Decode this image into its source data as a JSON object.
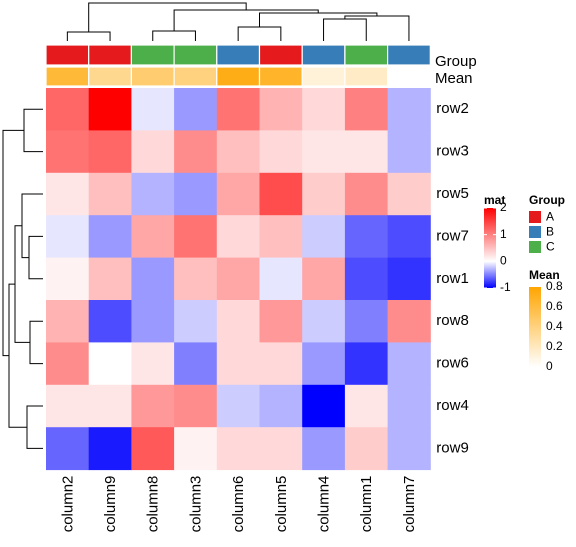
{
  "chart_data": {
    "type": "heatmap",
    "rows": [
      "row2",
      "row3",
      "row5",
      "row7",
      "row1",
      "row8",
      "row6",
      "row4",
      "row9"
    ],
    "columns": [
      "column2",
      "column9",
      "column8",
      "column3",
      "column6",
      "column5",
      "column4",
      "column1",
      "column7"
    ],
    "values": [
      [
        1.2,
        2.0,
        -0.1,
        -0.4,
        1.1,
        0.6,
        0.3,
        1.0,
        -0.3
      ],
      [
        1.1,
        1.2,
        0.3,
        0.9,
        0.5,
        0.3,
        0.2,
        0.2,
        -0.3
      ],
      [
        0.2,
        0.5,
        -0.3,
        -0.4,
        0.7,
        1.4,
        0.4,
        0.9,
        0.4
      ],
      [
        -0.1,
        -0.4,
        0.7,
        1.1,
        0.3,
        0.5,
        -0.2,
        -0.6,
        -0.7
      ],
      [
        0.1,
        0.5,
        -0.4,
        0.5,
        0.7,
        -0.1,
        0.7,
        -0.7,
        -0.8
      ],
      [
        0.6,
        -0.7,
        -0.4,
        -0.2,
        0.3,
        0.8,
        -0.2,
        -0.5,
        0.9
      ],
      [
        0.9,
        0.0,
        0.2,
        -0.5,
        0.3,
        0.3,
        -0.4,
        -0.8,
        -0.3
      ],
      [
        0.2,
        0.2,
        0.8,
        0.9,
        -0.2,
        -0.3,
        -1.0,
        0.2,
        -0.3
      ],
      [
        -0.6,
        -0.9,
        1.3,
        0.1,
        0.3,
        0.3,
        -0.4,
        0.4,
        -0.3
      ]
    ],
    "annotations": {
      "group_label": "Group",
      "mean_label": "Mean",
      "group": [
        "A",
        "A",
        "C",
        "C",
        "B",
        "A",
        "B",
        "C",
        "B"
      ],
      "mean": [
        0.62,
        0.35,
        0.45,
        0.4,
        0.73,
        0.67,
        0.12,
        0.18,
        0.0
      ]
    },
    "legends": {
      "mat": {
        "title": "mat",
        "ticks": [
          "2",
          "1",
          "0",
          "-1"
        ],
        "tick_values": [
          2,
          1,
          0,
          -1
        ],
        "range": [
          -1,
          2
        ],
        "colors": {
          "low": "#0000ff",
          "mid": "#ffffff",
          "high": "#ff0000"
        }
      },
      "group": {
        "title": "Group",
        "entries": [
          {
            "label": "A",
            "color": "#e41a1c"
          },
          {
            "label": "B",
            "color": "#377eb8"
          },
          {
            "label": "C",
            "color": "#4daf4a"
          }
        ]
      },
      "mean": {
        "title": "Mean",
        "ticks": [
          "0.8",
          "0.6",
          "0.4",
          "0.2",
          "0"
        ],
        "tick_values": [
          0.8,
          0.6,
          0.4,
          0.2,
          0
        ],
        "range": [
          0,
          0.8
        ],
        "colors": {
          "low": "#ffffff",
          "high": "#ffa500"
        }
      }
    }
  }
}
